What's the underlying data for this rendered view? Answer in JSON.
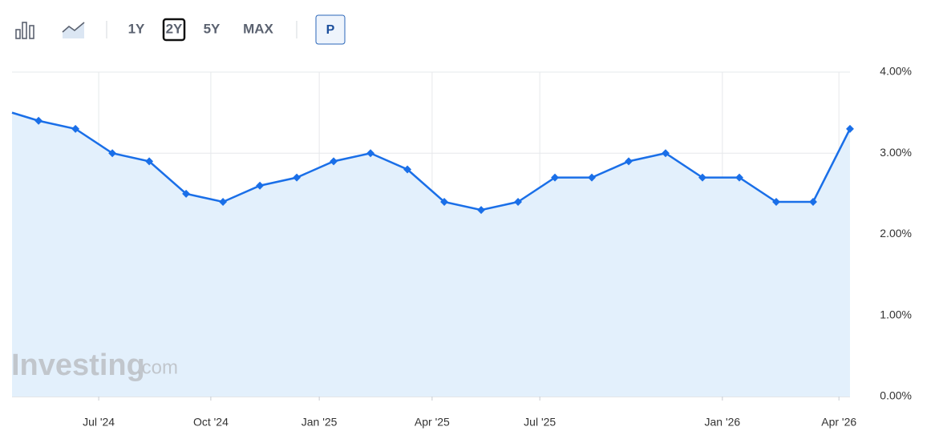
{
  "toolbar": {
    "ranges": [
      "1Y",
      "2Y",
      "5Y",
      "MAX"
    ],
    "selected_range": 1,
    "button": "P"
  },
  "watermark": {
    "brand": "Investing",
    "suffix": ".com"
  },
  "chart_data": {
    "type": "area",
    "x": [
      -0.72,
      0,
      1,
      2,
      3,
      4,
      5,
      6,
      7,
      8,
      9,
      10,
      11,
      12,
      13,
      14,
      15,
      16,
      17,
      18,
      19,
      20,
      21,
      22
    ],
    "series": [
      {
        "color": "#1a6fe8",
        "fill": "#e3f0fc",
        "values": [
          3.5,
          3.4,
          3.3,
          3.0,
          2.9,
          2.5,
          2.4,
          2.6,
          2.7,
          2.9,
          3.0,
          2.8,
          2.4,
          2.3,
          2.4,
          2.7,
          2.7,
          2.9,
          3.0,
          2.7,
          2.7,
          2.4,
          2.4,
          3.3
        ]
      }
    ],
    "xlim": [
      -0.72,
      22
    ],
    "xticks": [
      {
        "value": 1.63,
        "label": "Jul '24"
      },
      {
        "value": 4.67,
        "label": "Oct '24"
      },
      {
        "value": 7.61,
        "label": "Jan '25"
      },
      {
        "value": 10.67,
        "label": "Apr '25"
      },
      {
        "value": 13.59,
        "label": "Jul '25"
      },
      {
        "value": 18.54,
        "label": "Jan '26"
      },
      {
        "value": 21.7,
        "label": "Apr '26"
      }
    ],
    "ylim": [
      0,
      4
    ],
    "yticks": [
      {
        "value": 0,
        "label": "0.00%"
      },
      {
        "value": 1,
        "label": "1.00%"
      },
      {
        "value": 2,
        "label": "2.00%"
      },
      {
        "value": 3,
        "label": "3.00%"
      },
      {
        "value": 4,
        "label": "4.00%"
      }
    ],
    "grid": true
  }
}
